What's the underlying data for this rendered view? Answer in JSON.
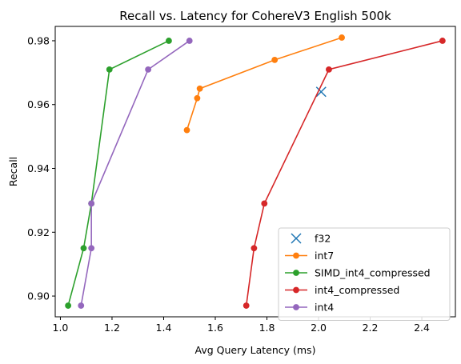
{
  "chart_data": {
    "type": "line",
    "title": "Recall vs. Latency for CohereV3 English 500k",
    "xlabel": "Avg Query Latency (ms)",
    "ylabel": "Recall",
    "xlim": [
      0.98,
      2.53
    ],
    "ylim": [
      0.8935,
      0.9845
    ],
    "xticks": [
      {
        "value": 1.0,
        "label": "1.0"
      },
      {
        "value": 1.2,
        "label": "1.2"
      },
      {
        "value": 1.4,
        "label": "1.4"
      },
      {
        "value": 1.6,
        "label": "1.6"
      },
      {
        "value": 1.8,
        "label": "1.8"
      },
      {
        "value": 2.0,
        "label": "2.0"
      },
      {
        "value": 2.2,
        "label": "2.2"
      },
      {
        "value": 2.4,
        "label": "2.4"
      }
    ],
    "yticks": [
      {
        "value": 0.9,
        "label": "0.90"
      },
      {
        "value": 0.92,
        "label": "0.92"
      },
      {
        "value": 0.94,
        "label": "0.94"
      },
      {
        "value": 0.96,
        "label": "0.96"
      },
      {
        "value": 0.98,
        "label": "0.98"
      }
    ],
    "grid": false,
    "legend_position": "lower-right",
    "series": [
      {
        "name": "f32",
        "color": "#1f77b4",
        "marker": "x",
        "x": [
          2.01
        ],
        "y": [
          0.964
        ]
      },
      {
        "name": "int7",
        "color": "#ff7f0e",
        "marker": "circle",
        "x": [
          1.49,
          1.53,
          1.54,
          1.83,
          2.09
        ],
        "y": [
          0.952,
          0.962,
          0.965,
          0.974,
          0.981
        ]
      },
      {
        "name": "SIMD_int4_compressed",
        "color": "#2ca02c",
        "marker": "circle",
        "x": [
          1.03,
          1.09,
          1.12,
          1.19,
          1.42
        ],
        "y": [
          0.897,
          0.915,
          0.929,
          0.971,
          0.98
        ]
      },
      {
        "name": "int4_compressed",
        "color": "#d62728",
        "marker": "circle",
        "x": [
          1.72,
          1.75,
          1.79,
          2.04,
          2.48
        ],
        "y": [
          0.897,
          0.915,
          0.929,
          0.971,
          0.98
        ]
      },
      {
        "name": "int4",
        "color": "#9467bd",
        "marker": "circle",
        "x": [
          1.08,
          1.12,
          1.12,
          1.34,
          1.5
        ],
        "y": [
          0.897,
          0.915,
          0.929,
          0.971,
          0.98
        ]
      }
    ]
  }
}
